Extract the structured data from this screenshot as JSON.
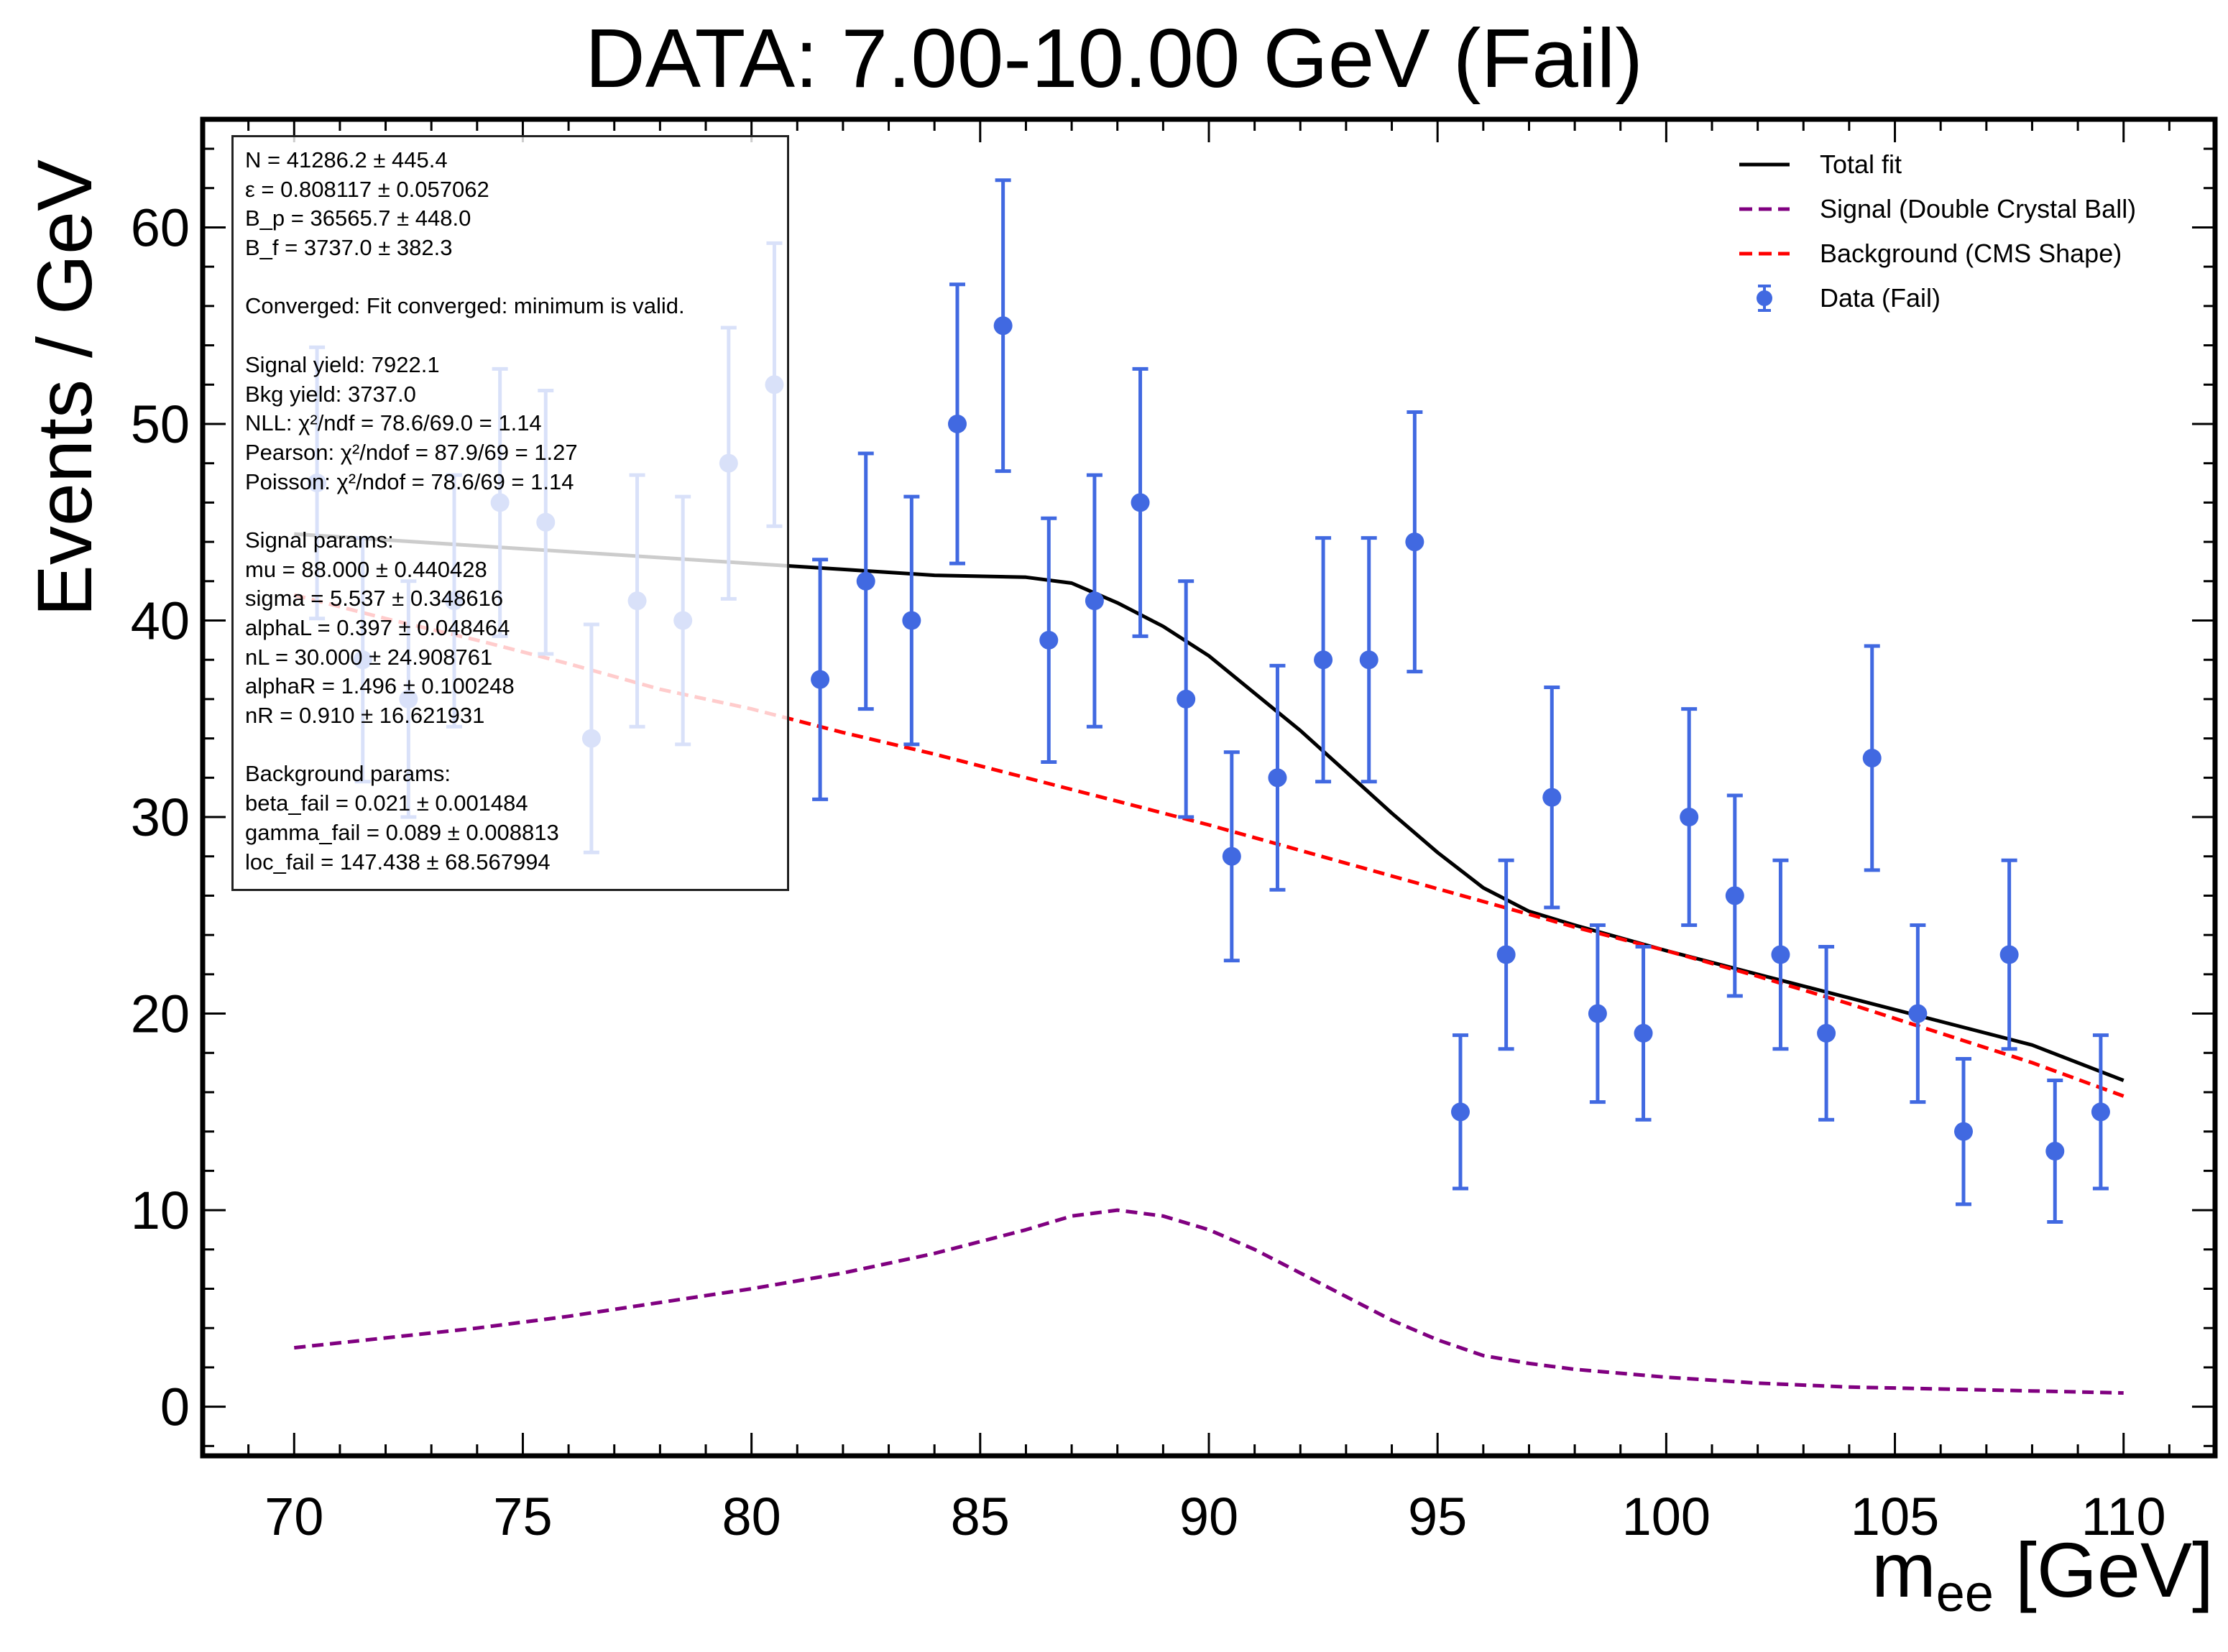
{
  "title": "DATA: 7.00-10.00 GeV (Fail)",
  "axes": {
    "ylabel": "Events / GeV",
    "xlabel_main": "m",
    "xlabel_sub": "ee",
    "xlabel_unit": " [GeV]"
  },
  "info_box": {
    "lines": [
      "N = 41286.2 ± 445.4",
      "ε = 0.808117 ± 0.057062",
      "B_p = 36565.7 ± 448.0",
      "B_f = 3737.0 ± 382.3",
      "",
      "Converged: Fit converged: minimum is valid.",
      "",
      "Signal yield: 7922.1",
      "Bkg yield: 3737.0",
      "NLL: χ²/ndf = 78.6/69.0 = 1.14",
      "Pearson: χ²/ndof = 87.9/69 = 1.27",
      "Poisson: χ²/ndof = 78.6/69 = 1.14",
      "",
      "Signal params:",
      "mu = 88.000 ± 0.440428",
      "sigma = 5.537 ± 0.348616",
      "alphaL = 0.397 ± 0.048464",
      "nL = 30.000 ± 24.908761",
      "alphaR = 1.496 ± 0.100248",
      "nR = 0.910 ± 16.621931",
      "",
      "Background params:",
      "beta_fail = 0.021 ± 0.001484",
      "gamma_fail = 0.089 ± 0.008813",
      "loc_fail = 147.438 ± 68.567994"
    ]
  },
  "legend": {
    "placement": "top-right",
    "items": [
      {
        "label": "Total fit",
        "kind": "line",
        "color": "#000000",
        "dash": false
      },
      {
        "label": "Signal (Double Crystal Ball)",
        "kind": "line",
        "color": "#800080",
        "dash": true
      },
      {
        "label": "Background (CMS Shape)",
        "kind": "line",
        "color": "#ff0000",
        "dash": true
      },
      {
        "label": "Data (Fail)",
        "kind": "errorbar",
        "color": "#4169e1",
        "dash": false
      }
    ]
  },
  "chart_data": {
    "type": "scatter",
    "title": "DATA: 7.00-10.00 GeV (Fail)",
    "xlabel": "m_ee [GeV]",
    "ylabel": "Events / GeV",
    "xlim": [
      68,
      112
    ],
    "ylim": [
      -2.5,
      65.5
    ],
    "xticks": [
      70,
      75,
      80,
      85,
      90,
      95,
      100,
      105,
      110
    ],
    "yticks": [
      0,
      10,
      20,
      30,
      40,
      50,
      60
    ],
    "grid": false,
    "series": [
      {
        "name": "Data (Fail)",
        "color": "#4169e1",
        "x": [
          70.5,
          71.5,
          72.5,
          73.5,
          74.5,
          75.5,
          76.5,
          77.5,
          78.5,
          79.5,
          80.5,
          81.5,
          82.5,
          83.5,
          84.5,
          85.5,
          86.5,
          87.5,
          88.5,
          89.5,
          90.5,
          91.5,
          92.5,
          93.5,
          94.5,
          95.5,
          96.5,
          97.5,
          98.5,
          99.5,
          100.5,
          101.5,
          102.5,
          103.5,
          104.5,
          105.5,
          106.5,
          107.5,
          108.5,
          109.5
        ],
        "y": [
          47,
          38,
          36,
          41,
          46,
          45,
          34,
          41,
          40,
          48,
          52,
          37,
          42,
          40,
          50,
          55,
          39,
          41,
          46,
          36,
          28,
          32,
          38,
          38,
          44,
          15,
          23,
          31,
          20,
          19,
          30,
          26,
          23,
          19,
          33,
          20,
          14,
          23,
          13,
          15
        ]
      },
      {
        "name": "Total fit",
        "color": "#000000",
        "x": [
          70,
          72,
          74,
          76,
          78,
          80,
          82,
          84,
          86,
          87,
          88,
          89,
          90,
          91,
          92,
          93,
          94,
          95,
          96,
          97,
          98,
          100,
          102,
          104,
          106,
          108,
          110
        ],
        "y": [
          44.4,
          44.1,
          43.8,
          43.5,
          43.2,
          42.9,
          42.6,
          42.3,
          42.2,
          41.9,
          40.9,
          39.7,
          38.2,
          36.3,
          34.4,
          32.3,
          30.2,
          28.2,
          26.4,
          25.2,
          24.5,
          23.2,
          22.0,
          20.8,
          19.6,
          18.4,
          16.6
        ]
      },
      {
        "name": "Signal (Double Crystal Ball)",
        "color": "#800080",
        "x": [
          70,
          72,
          74,
          76,
          78,
          80,
          82,
          84,
          86,
          87,
          88,
          89,
          90,
          91,
          92,
          93,
          94,
          95,
          96,
          97,
          98,
          100,
          102,
          104,
          106,
          108,
          110
        ],
        "y": [
          3.0,
          3.5,
          4.0,
          4.6,
          5.3,
          6.0,
          6.8,
          7.8,
          9.0,
          9.7,
          10.0,
          9.7,
          9.0,
          8.0,
          6.8,
          5.6,
          4.4,
          3.4,
          2.6,
          2.2,
          1.9,
          1.5,
          1.2,
          1.0,
          0.9,
          0.8,
          0.7
        ]
      },
      {
        "name": "Background (CMS Shape)",
        "color": "#ff0000",
        "x": [
          70,
          72,
          74,
          76,
          78,
          80,
          82,
          84,
          86,
          88,
          90,
          92,
          94,
          96,
          98,
          100,
          102,
          104,
          106,
          108,
          110
        ],
        "y": [
          41.3,
          40.1,
          39.0,
          37.8,
          36.5,
          35.5,
          34.3,
          33.2,
          32.0,
          30.8,
          29.6,
          28.3,
          27.0,
          25.7,
          24.4,
          23.2,
          21.9,
          20.5,
          19.0,
          17.5,
          15.8
        ]
      }
    ],
    "error_bars": {
      "series": "Data (Fail)",
      "yerr": [
        6.9,
        6.2,
        6.0,
        6.4,
        6.8,
        6.7,
        5.8,
        6.4,
        6.3,
        6.9,
        7.2,
        6.1,
        6.5,
        6.3,
        7.1,
        7.4,
        6.2,
        6.4,
        6.8,
        6.0,
        5.3,
        5.7,
        6.2,
        6.2,
        6.6,
        3.9,
        4.8,
        5.6,
        4.5,
        4.4,
        5.5,
        5.1,
        4.8,
        4.4,
        5.7,
        4.5,
        3.7,
        4.8,
        3.6,
        3.9
      ]
    }
  }
}
